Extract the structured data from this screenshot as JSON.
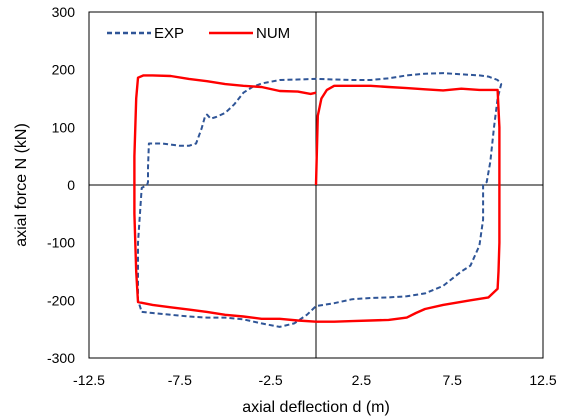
{
  "chart_data": {
    "type": "line",
    "title": "",
    "xlabel": "axial deflection  d (m)",
    "ylabel": "axial force   N (kN)",
    "xlim": [
      -12.5,
      12.5
    ],
    "ylim": [
      -300,
      300
    ],
    "x_ticks": [
      -12.5,
      -7.5,
      -2.5,
      2.5,
      7.5,
      12.5
    ],
    "y_ticks": [
      300,
      200,
      100,
      0,
      -100,
      -200,
      -300
    ],
    "x_tick_labels": [
      "-12.5",
      "-7.5",
      "-2.5",
      "2.5",
      "7.5",
      "12.5"
    ],
    "y_tick_labels": [
      "300",
      "200",
      "100",
      "0",
      "-100",
      "-200",
      "-300"
    ],
    "grid": false,
    "legend_position": "top-left",
    "series": [
      {
        "name": "EXP",
        "color": "#2f5597",
        "style": "dashed",
        "points": [
          [
            -9.6,
            -220
          ],
          [
            -9.0,
            -222
          ],
          [
            -8.0,
            -225
          ],
          [
            -7.0,
            -228
          ],
          [
            -6.0,
            -230
          ],
          [
            -5.0,
            -230
          ],
          [
            -4.0,
            -233
          ],
          [
            -3.0,
            -240
          ],
          [
            -2.0,
            -246
          ],
          [
            -1.2,
            -240
          ],
          [
            -0.5,
            -225
          ],
          [
            0.0,
            -210
          ],
          [
            1.0,
            -205
          ],
          [
            2.0,
            -198
          ],
          [
            3.0,
            -196
          ],
          [
            4.0,
            -195
          ],
          [
            5.0,
            -193
          ],
          [
            6.0,
            -188
          ],
          [
            7.0,
            -175
          ],
          [
            8.0,
            -150
          ],
          [
            8.5,
            -140
          ],
          [
            9.0,
            -105
          ],
          [
            9.2,
            -60
          ],
          [
            9.2,
            -15
          ],
          [
            9.2,
            0
          ],
          [
            9.4,
            5
          ],
          [
            9.6,
            40
          ],
          [
            9.8,
            100
          ],
          [
            10.0,
            150
          ],
          [
            10.2,
            175
          ],
          [
            10.0,
            182
          ],
          [
            9.5,
            188
          ],
          [
            9.0,
            190
          ],
          [
            8.0,
            192
          ],
          [
            7.0,
            194
          ],
          [
            6.0,
            193
          ],
          [
            5.0,
            190
          ],
          [
            4.0,
            185
          ],
          [
            3.0,
            182
          ],
          [
            2.0,
            182
          ],
          [
            1.0,
            183
          ],
          [
            0.0,
            184
          ],
          [
            -1.0,
            183
          ],
          [
            -2.0,
            182
          ],
          [
            -3.0,
            176
          ],
          [
            -3.5,
            170
          ],
          [
            -4.0,
            160
          ],
          [
            -4.5,
            140
          ],
          [
            -5.0,
            125
          ],
          [
            -5.5,
            118
          ],
          [
            -5.8,
            115
          ],
          [
            -6.0,
            122
          ],
          [
            -6.1,
            120
          ],
          [
            -6.3,
            98
          ],
          [
            -6.6,
            72
          ],
          [
            -7.0,
            68
          ],
          [
            -7.5,
            68
          ],
          [
            -8.0,
            70
          ],
          [
            -8.5,
            72
          ],
          [
            -9.2,
            72
          ],
          [
            -9.25,
            30
          ],
          [
            -9.25,
            5
          ],
          [
            -9.3,
            0
          ],
          [
            -9.6,
            -5
          ],
          [
            -9.8,
            -100
          ],
          [
            -9.8,
            -200
          ],
          [
            -9.6,
            -220
          ]
        ]
      },
      {
        "name": "NUM",
        "color": "#ff0000",
        "style": "solid",
        "points": [
          [
            0.0,
            0
          ],
          [
            0.05,
            60
          ],
          [
            0.1,
            120
          ],
          [
            0.3,
            150
          ],
          [
            0.6,
            165
          ],
          [
            1.0,
            172
          ],
          [
            2.0,
            172
          ],
          [
            3.0,
            172
          ],
          [
            4.0,
            170
          ],
          [
            5.0,
            168
          ],
          [
            6.0,
            166
          ],
          [
            7.0,
            164
          ],
          [
            8.0,
            167
          ],
          [
            9.0,
            165
          ],
          [
            10.0,
            165
          ],
          [
            10.1,
            100
          ],
          [
            10.1,
            0
          ],
          [
            10.1,
            -100
          ],
          [
            10.05,
            -150
          ],
          [
            10.0,
            -180
          ],
          [
            9.5,
            -195
          ],
          [
            8.5,
            -200
          ],
          [
            7.0,
            -208
          ],
          [
            6.0,
            -215
          ],
          [
            5.5,
            -222
          ],
          [
            5.0,
            -230
          ],
          [
            4.0,
            -234
          ],
          [
            3.0,
            -235
          ],
          [
            2.0,
            -236
          ],
          [
            1.0,
            -237
          ],
          [
            0.0,
            -237
          ],
          [
            -1.0,
            -235
          ],
          [
            -2.0,
            -232
          ],
          [
            -3.0,
            -232
          ],
          [
            -4.0,
            -228
          ],
          [
            -5.0,
            -225
          ],
          [
            -6.0,
            -220
          ],
          [
            -7.0,
            -216
          ],
          [
            -8.0,
            -212
          ],
          [
            -9.0,
            -208
          ],
          [
            -9.8,
            -203
          ],
          [
            -9.9,
            -150
          ],
          [
            -10.0,
            -50
          ],
          [
            -10.0,
            50
          ],
          [
            -9.9,
            150
          ],
          [
            -9.8,
            186
          ],
          [
            -9.5,
            190
          ],
          [
            -9.0,
            190
          ],
          [
            -8.0,
            189
          ],
          [
            -7.0,
            184
          ],
          [
            -6.0,
            180
          ],
          [
            -5.0,
            175
          ],
          [
            -4.0,
            172
          ],
          [
            -3.0,
            170
          ],
          [
            -2.0,
            163
          ],
          [
            -1.0,
            162
          ],
          [
            -0.3,
            158
          ],
          [
            0.0,
            160
          ]
        ]
      }
    ]
  }
}
